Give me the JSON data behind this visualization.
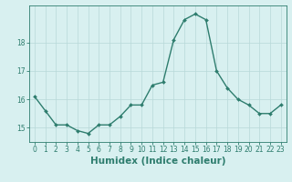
{
  "x": [
    0,
    1,
    2,
    3,
    4,
    5,
    6,
    7,
    8,
    9,
    10,
    11,
    12,
    13,
    14,
    15,
    16,
    17,
    18,
    19,
    20,
    21,
    22,
    23
  ],
  "y": [
    16.1,
    15.6,
    15.1,
    15.1,
    14.9,
    14.8,
    15.1,
    15.1,
    15.4,
    15.8,
    15.8,
    16.5,
    16.6,
    18.1,
    18.8,
    19.0,
    18.8,
    17.0,
    16.4,
    16.0,
    15.8,
    15.5,
    15.5,
    15.8
  ],
  "line_color": "#2e7d6e",
  "marker": "D",
  "markersize": 2.0,
  "linewidth": 1.0,
  "bg_color": "#d8f0f0",
  "grid_color": "#b8d8d8",
  "xlabel": "Humidex (Indice chaleur)",
  "xlim": [
    -0.5,
    23.5
  ],
  "ylim": [
    14.5,
    19.3
  ],
  "yticks": [
    15,
    16,
    17,
    18
  ],
  "xticks": [
    0,
    1,
    2,
    3,
    4,
    5,
    6,
    7,
    8,
    9,
    10,
    11,
    12,
    13,
    14,
    15,
    16,
    17,
    18,
    19,
    20,
    21,
    22,
    23
  ],
  "tick_fontsize": 5.5,
  "label_fontsize": 7.5
}
